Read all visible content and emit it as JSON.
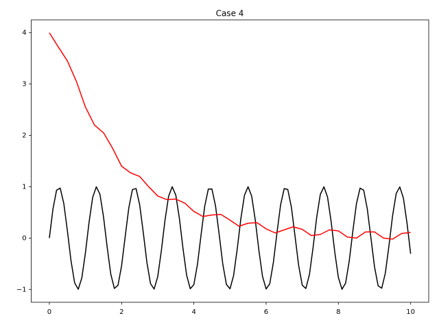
{
  "chart_data": {
    "type": "line",
    "title": "Case 4",
    "xlim": [
      -0.5,
      10.5
    ],
    "ylim": [
      -1.25,
      4.25
    ],
    "xticks": [
      0,
      2,
      4,
      6,
      8,
      10
    ],
    "yticks": [
      {
        "value": -1,
        "label": "−1"
      },
      0,
      1,
      2,
      3,
      4
    ],
    "grid": false,
    "series": [
      {
        "color": "#000000",
        "x": [
          0,
          0.1,
          0.2,
          0.3,
          0.4,
          0.5,
          0.6,
          0.7,
          0.8,
          0.9,
          1,
          1.1,
          1.2,
          1.3,
          1.4,
          1.5,
          1.6,
          1.7,
          1.8,
          1.9,
          2,
          2.1,
          2.2,
          2.3,
          2.4,
          2.5,
          2.6,
          2.7,
          2.8,
          2.9,
          3,
          3.1,
          3.2,
          3.3,
          3.4,
          3.5,
          3.6,
          3.7,
          3.8,
          3.9,
          4,
          4.1,
          4.2,
          4.3,
          4.4,
          4.5,
          4.6,
          4.7,
          4.8,
          4.9,
          5,
          5.1,
          5.2,
          5.3,
          5.4,
          5.5,
          5.6,
          5.7,
          5.8,
          5.9,
          6,
          6.1,
          6.2,
          6.3,
          6.4,
          6.5,
          6.6,
          6.7,
          6.8,
          6.9,
          7,
          7.1,
          7.2,
          7.3,
          7.4,
          7.5,
          7.6,
          7.7,
          7.8,
          7.9,
          8,
          8.1,
          8.2,
          8.3,
          8.4,
          8.5,
          8.6,
          8.7,
          8.8,
          8.9,
          9,
          9.1,
          9.2,
          9.3,
          9.4,
          9.5,
          9.6,
          9.7,
          9.8,
          9.9,
          10
        ],
        "values": [
          0,
          0.565,
          0.932,
          0.974,
          0.675,
          0.141,
          -0.443,
          -0.872,
          -0.996,
          -0.773,
          -0.279,
          0.312,
          0.794,
          0.999,
          0.855,
          0.412,
          -0.175,
          -0.7,
          -0.981,
          -0.919,
          -0.537,
          0.034,
          0.592,
          0.945,
          0.965,
          0.65,
          0.108,
          -0.472,
          -0.886,
          -0.993,
          -0.751,
          -0.245,
          0.342,
          0.812,
          1.0,
          0.837,
          0.382,
          -0.206,
          -0.724,
          -0.987,
          -0.906,
          -0.51,
          0.067,
          0.619,
          0.954,
          0.956,
          0.625,
          0.074,
          -0.502,
          -0.901,
          -0.988,
          -0.728,
          -0.214,
          0.375,
          0.833,
          1.0,
          0.818,
          0.35,
          -0.24,
          -0.746,
          -0.991,
          -0.891,
          -0.478,
          0.101,
          0.645,
          0.964,
          0.946,
          0.598,
          0.04,
          -0.531,
          -0.917,
          -0.982,
          -0.705,
          -0.181,
          0.406,
          0.851,
          0.999,
          0.797,
          0.318,
          -0.272,
          -0.768,
          -0.996,
          -0.876,
          -0.448,
          0.134,
          0.671,
          0.972,
          0.934,
          0.569,
          0.007,
          -0.559,
          -0.93,
          -0.976,
          -0.681,
          -0.148,
          0.436,
          0.868,
          0.997,
          0.778,
          0.287,
          -0.305
        ]
      },
      {
        "color": "#ff0000",
        "x": [
          0,
          0.25,
          0.5,
          0.75,
          1,
          1.25,
          1.5,
          1.75,
          2,
          2.25,
          2.5,
          2.75,
          3,
          3.25,
          3.5,
          3.75,
          4,
          4.25,
          4.5,
          4.75,
          5,
          5.25,
          5.5,
          5.75,
          6,
          6.25,
          6.5,
          6.75,
          7,
          7.25,
          7.5,
          7.75,
          8,
          8.25,
          8.5,
          8.75,
          9,
          9.25,
          9.5,
          9.75,
          10
        ],
        "values": [
          4.0,
          3.72,
          3.45,
          3.05,
          2.55,
          2.2,
          2.05,
          1.75,
          1.4,
          1.27,
          1.2,
          1.0,
          0.82,
          0.75,
          0.76,
          0.68,
          0.52,
          0.42,
          0.45,
          0.46,
          0.35,
          0.23,
          0.29,
          0.3,
          0.18,
          0.1,
          0.16,
          0.22,
          0.17,
          0.05,
          0.07,
          0.16,
          0.14,
          0.02,
          0.0,
          0.12,
          0.12,
          0.0,
          -0.02,
          0.09,
          0.11
        ]
      }
    ]
  }
}
